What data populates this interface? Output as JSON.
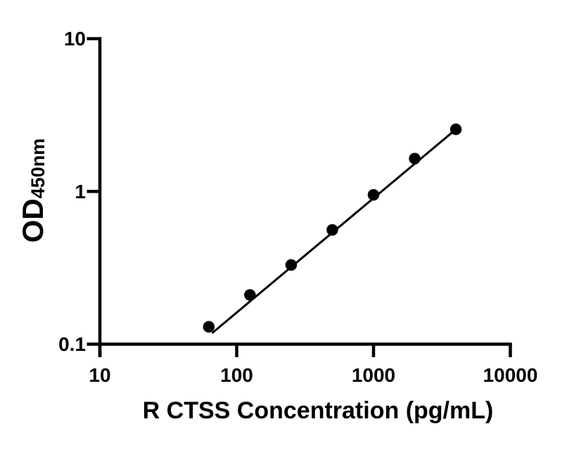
{
  "figure": {
    "background": "#ffffff",
    "foreground": "#000000"
  },
  "chart_data": {
    "type": "scatter",
    "title": "",
    "xlabel": "R CTSS Concentration (pg/mL)",
    "ylabel_main": "OD",
    "ylabel_sub": "450nm",
    "x_scale": "log10",
    "y_scale": "log10",
    "xlim": [
      10,
      10000
    ],
    "ylim": [
      0.1,
      10
    ],
    "x_ticks": {
      "values": [
        10,
        100,
        1000,
        10000
      ],
      "labels": [
        "10",
        "100",
        "1000",
        "10000"
      ]
    },
    "y_ticks": {
      "values": [
        0.1,
        1,
        10
      ],
      "labels": [
        "0.1",
        "1",
        "10"
      ]
    },
    "grid": false,
    "legend": false,
    "marker": "filled-circle",
    "marker_color": "#000000",
    "line_color": "#000000",
    "series": [
      {
        "x": [
          62.5,
          125,
          250,
          500,
          1000,
          2000,
          4000
        ],
        "y": [
          0.13,
          0.21,
          0.33,
          0.56,
          0.95,
          1.64,
          2.55
        ]
      }
    ],
    "fit_line": {
      "x": [
        66,
        4000
      ],
      "y": [
        0.118,
        2.55
      ]
    }
  }
}
